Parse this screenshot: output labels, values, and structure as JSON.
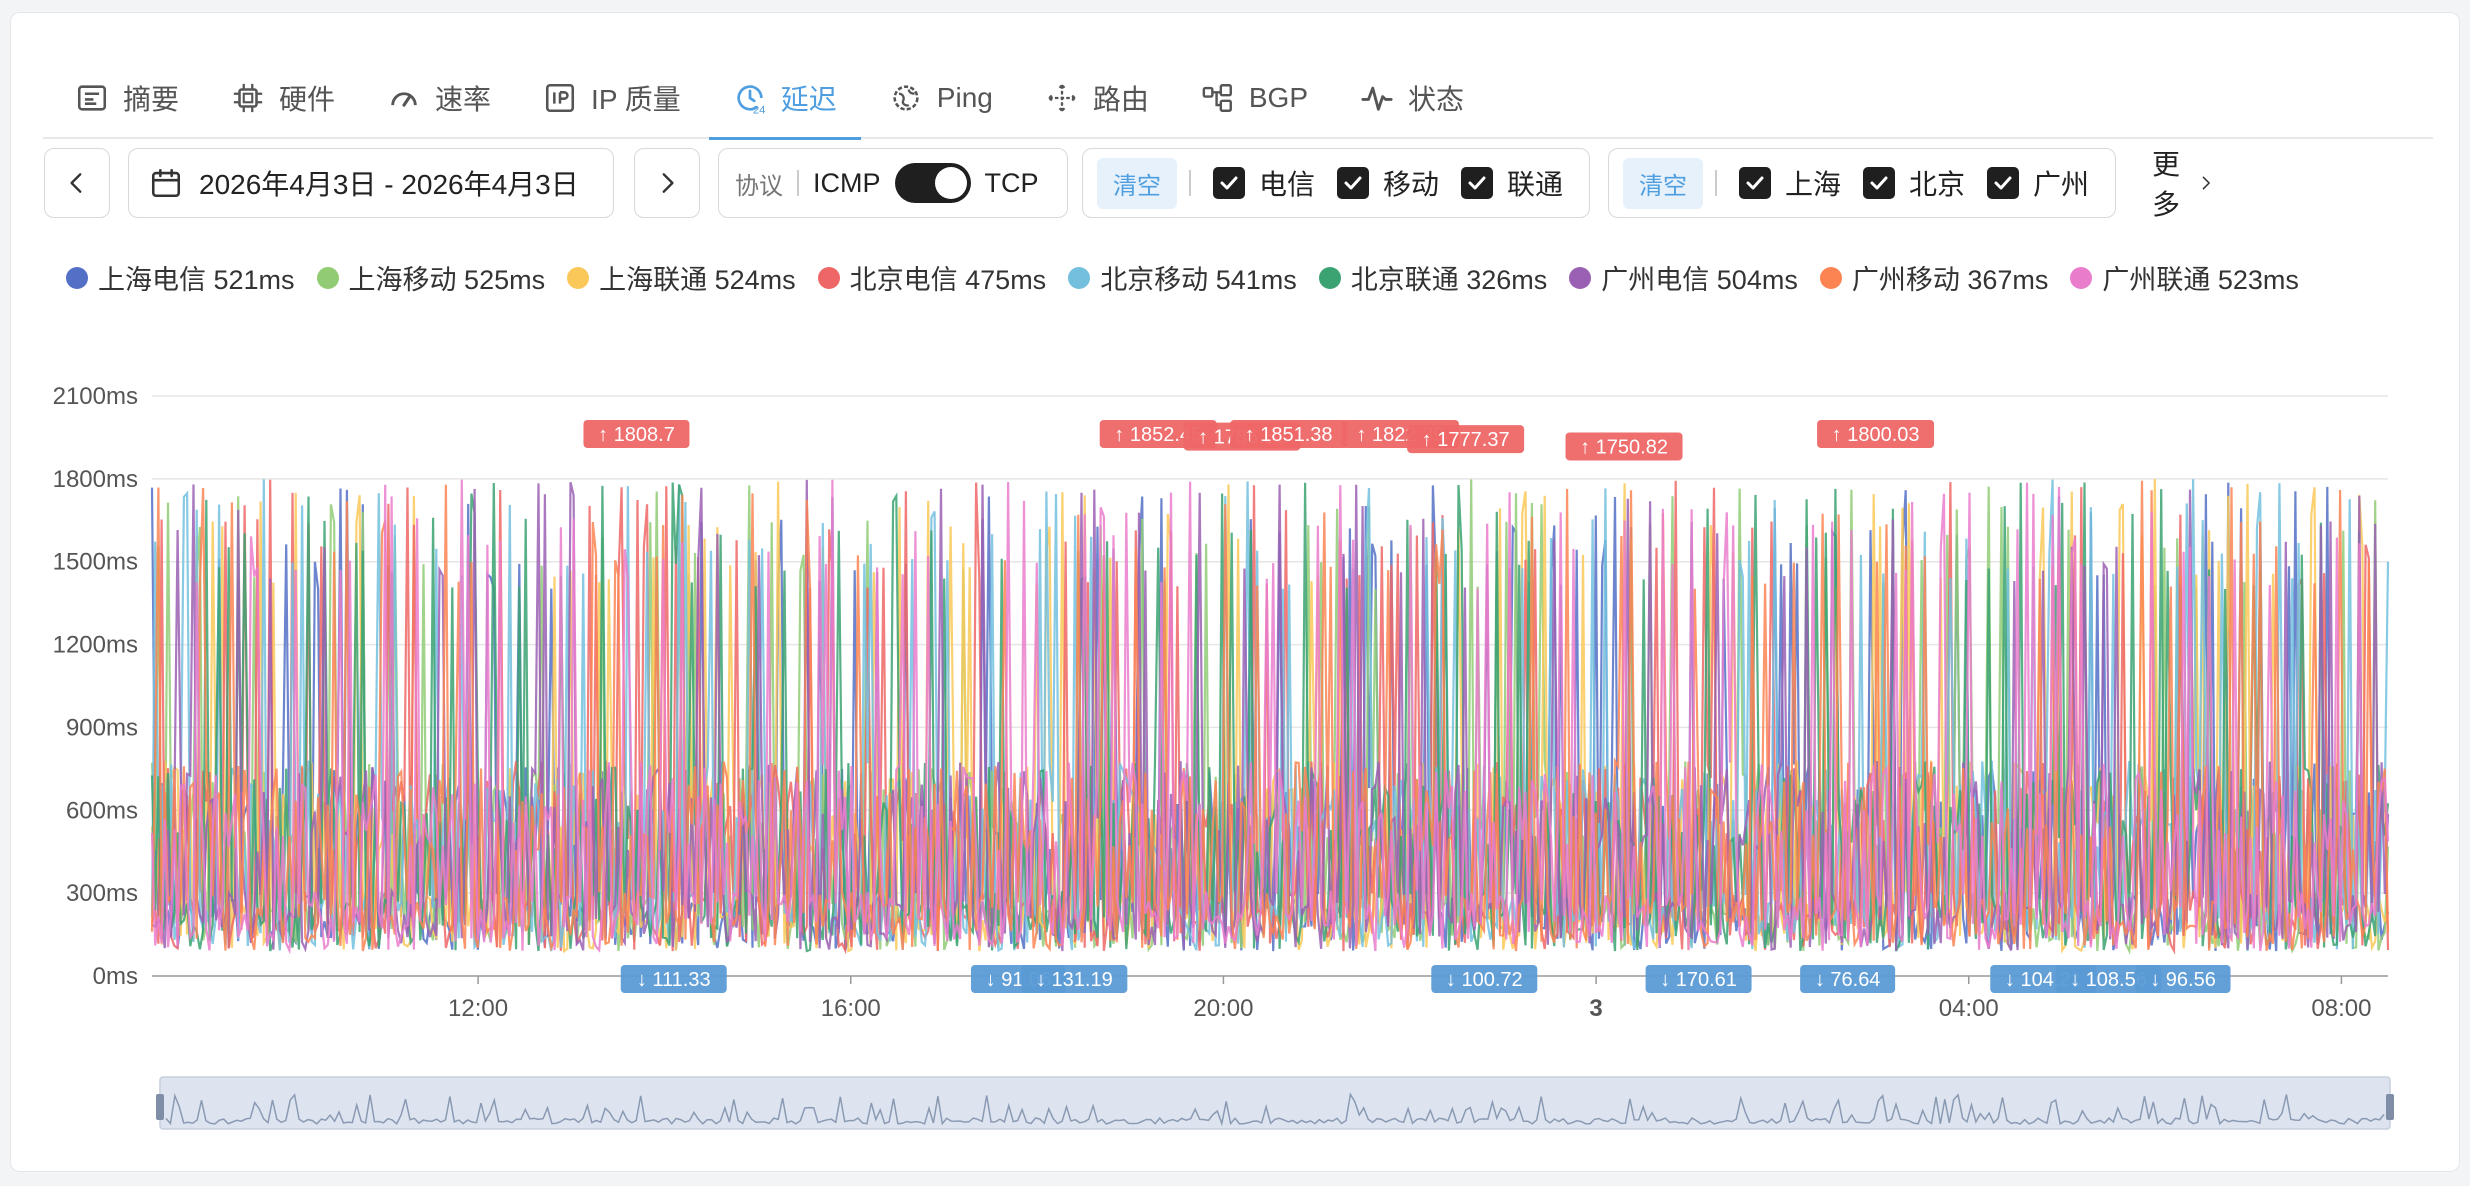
{
  "tabs": [
    {
      "label": "摘要",
      "icon": "summary-icon"
    },
    {
      "label": "硬件",
      "icon": "chip-icon"
    },
    {
      "label": "速率",
      "icon": "speed-gauge-icon"
    },
    {
      "label": "IP 质量",
      "icon": "ip-icon"
    },
    {
      "label": "延迟",
      "icon": "latency-clock-icon",
      "active": true
    },
    {
      "label": "Ping",
      "icon": "globe-icon"
    },
    {
      "label": "路由",
      "icon": "route-icon"
    },
    {
      "label": "BGP",
      "icon": "bgp-network-icon"
    },
    {
      "label": "状态",
      "icon": "status-pulse-icon"
    }
  ],
  "date_range": {
    "text": "2026年4月3日 - 2026年4月3日"
  },
  "protocol": {
    "label": "协议",
    "left": "ICMP",
    "right": "TCP",
    "selected": "TCP"
  },
  "isp_filter": {
    "clear": "清空",
    "options": [
      "电信",
      "移动",
      "联通"
    ]
  },
  "city_filter": {
    "clear": "清空",
    "options": [
      "上海",
      "北京",
      "广州"
    ]
  },
  "more": "更多",
  "legend": [
    {
      "label": "上海电信 521ms",
      "color": "#5470c6"
    },
    {
      "label": "上海移动 525ms",
      "color": "#91cc75"
    },
    {
      "label": "上海联通 524ms",
      "color": "#fac858"
    },
    {
      "label": "北京电信 475ms",
      "color": "#ee6666"
    },
    {
      "label": "北京移动 541ms",
      "color": "#73c0de"
    },
    {
      "label": "北京联通 326ms",
      "color": "#3ba272"
    },
    {
      "label": "广州电信 504ms",
      "color": "#9a60b4"
    },
    {
      "label": "广州移动 367ms",
      "color": "#fc8452"
    },
    {
      "label": "广州联通 523ms",
      "color": "#ea7ccc"
    }
  ],
  "chart_data": {
    "type": "line",
    "y_unit": "ms",
    "ylim": [
      0,
      2100
    ],
    "yticks": [
      "0ms",
      "300ms",
      "600ms",
      "900ms",
      "1200ms",
      "1500ms",
      "1800ms",
      "2100ms"
    ],
    "xticks": [
      "12:00",
      "16:00",
      "20:00",
      "3",
      "04:00",
      "08:00"
    ],
    "x_range_hours": [
      8.5,
      32.5
    ],
    "series": [
      {
        "name": "上海电信 521ms",
        "color": "#5470c6"
      },
      {
        "name": "上海移动 525ms",
        "color": "#91cc75"
      },
      {
        "name": "上海联通 524ms",
        "color": "#fac858"
      },
      {
        "name": "北京电信 475ms",
        "color": "#ee6666"
      },
      {
        "name": "北京移动 541ms",
        "color": "#73c0de"
      },
      {
        "name": "北京联通 326ms",
        "color": "#3ba272"
      },
      {
        "name": "广州电信 504ms",
        "color": "#9a60b4"
      },
      {
        "name": "广州移动 367ms",
        "color": "#fc8452"
      },
      {
        "name": "广州联通 523ms",
        "color": "#ea7ccc"
      }
    ],
    "max_markers": [
      {
        "label": "↑ 1808.7",
        "hour": 13.7,
        "value": 1808.7
      },
      {
        "label": "↑ 1852.45",
        "hour": 19.3,
        "value": 1852.45
      },
      {
        "label": "↑ 1786.51",
        "hour": 20.2,
        "value": 1786.51
      },
      {
        "label": "↑ 1851.38",
        "hour": 20.7,
        "value": 1851.38
      },
      {
        "label": "↑ 1822.39",
        "hour": 21.9,
        "value": 1822.39
      },
      {
        "label": "↑ 1777.37",
        "hour": 22.6,
        "value": 1777.37
      },
      {
        "label": "↑ 1750.82",
        "hour": 24.3,
        "value": 1750.82
      },
      {
        "label": "↑ 1800.03",
        "hour": 27.0,
        "value": 1800.03
      }
    ],
    "min_markers": [
      {
        "label": "↓ 111.33",
        "hour": 14.1,
        "value": 111.33
      },
      {
        "label": "↓ 91.06",
        "hour": 17.8,
        "value": 91.06
      },
      {
        "label": "↓ 131.19",
        "hour": 18.4,
        "value": 131.19
      },
      {
        "label": "↓ 100.72",
        "hour": 22.8,
        "value": 100.72
      },
      {
        "label": "↓ 170.61",
        "hour": 25.1,
        "value": 170.61
      },
      {
        "label": "↓ 76.64",
        "hour": 26.7,
        "value": 76.64
      },
      {
        "label": "↓ 104.21",
        "hour": 28.8,
        "value": 104.21
      },
      {
        "label": "↓ 108.56",
        "hour": 29.5,
        "value": 108.56
      },
      {
        "label": "↓ 96.56",
        "hour": 30.3,
        "value": 96.56
      }
    ]
  }
}
